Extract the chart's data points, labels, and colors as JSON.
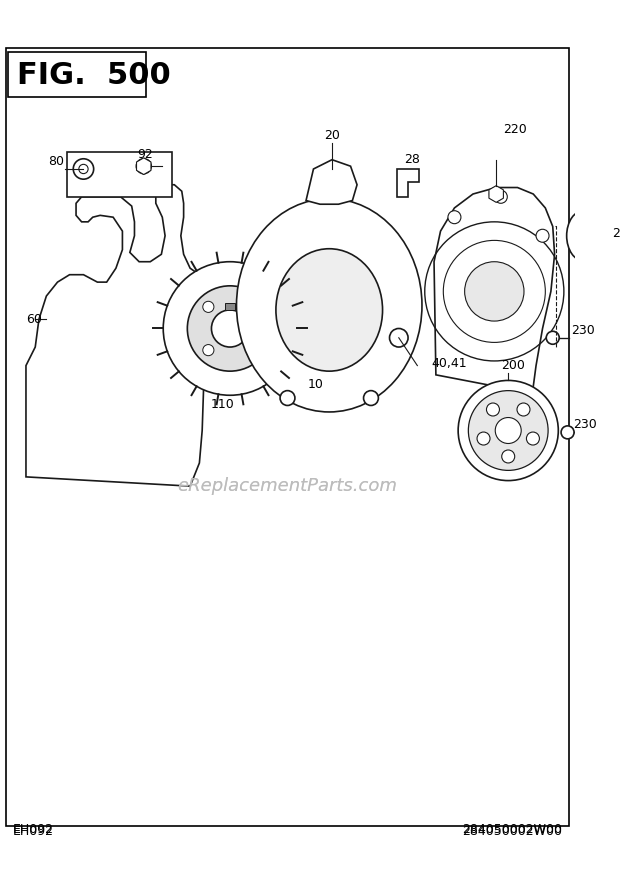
{
  "title": "FIG.  500",
  "bottom_left": "EH092",
  "bottom_right": "284050002W00",
  "watermark": "eReplacementParts.com",
  "bg_color": "#ffffff",
  "border_color": "#000000"
}
